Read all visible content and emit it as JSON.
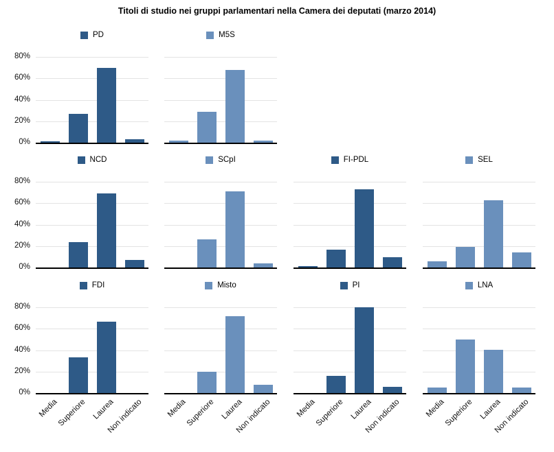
{
  "title": "Titoli di studio nei gruppi parlamentari nella Camera dei deputati (marzo 2014)",
  "colors": {
    "dark": "#2e5a87",
    "light": "#6a90bc",
    "gridline": "#e3e3e3",
    "axis_line": "#000000",
    "text": "#000000"
  },
  "chart_data": {
    "type": "bar",
    "title": "Titoli di studio nei gruppi parlamentari nella Camera dei deputati (marzo 2014)",
    "categories": [
      "Media",
      "Superiore",
      "Laurea",
      "Non indicato"
    ],
    "y_ticks": [
      "0%",
      "20%",
      "40%",
      "60%",
      "80%"
    ],
    "ylim": [
      0,
      80
    ],
    "grid": true,
    "legend_position": "top-of-each-panel",
    "layout": {
      "rows": 3,
      "cols": 4,
      "row1_panels": 2,
      "y_axis_labels_on": "first-column-only",
      "x_axis_labels_on": "bottom-row-only"
    },
    "panels": [
      {
        "name": "PD",
        "row": 0,
        "col": 0,
        "color": "dark",
        "values": [
          1,
          27,
          70,
          3.5
        ]
      },
      {
        "name": "M5S",
        "row": 0,
        "col": 1,
        "color": "light",
        "values": [
          2,
          29,
          68,
          2
        ]
      },
      {
        "name": "NCD",
        "row": 1,
        "col": 0,
        "color": "dark",
        "values": [
          0,
          24,
          69,
          7
        ]
      },
      {
        "name": "SCpI",
        "row": 1,
        "col": 1,
        "color": "light",
        "values": [
          0,
          26,
          71,
          3.7
        ]
      },
      {
        "name": "FI-PDL",
        "row": 1,
        "col": 2,
        "color": "dark",
        "values": [
          1.5,
          16.5,
          73,
          9.5
        ]
      },
      {
        "name": "SEL",
        "row": 1,
        "col": 3,
        "color": "light",
        "values": [
          6,
          19,
          62.5,
          14
        ]
      },
      {
        "name": "FDI",
        "row": 2,
        "col": 0,
        "color": "dark",
        "values": [
          0,
          33.5,
          66.5,
          0
        ]
      },
      {
        "name": "Misto",
        "row": 2,
        "col": 1,
        "color": "light",
        "values": [
          0,
          20,
          71.5,
          7.5
        ]
      },
      {
        "name": "PI",
        "row": 2,
        "col": 2,
        "color": "dark",
        "values": [
          0,
          16,
          80,
          5.5
        ]
      },
      {
        "name": "LNA",
        "row": 2,
        "col": 3,
        "color": "light",
        "values": [
          5,
          50,
          40.5,
          5
        ]
      }
    ]
  }
}
